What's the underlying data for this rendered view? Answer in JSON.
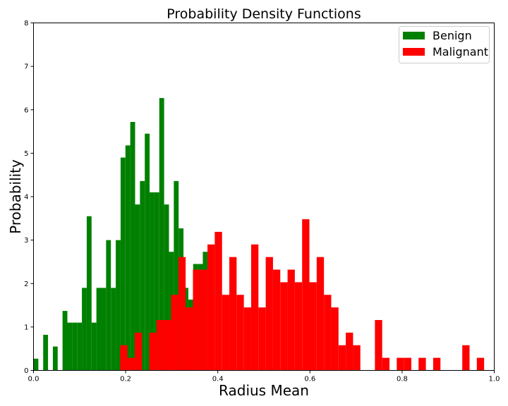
{
  "chart_data": {
    "type": "bar",
    "title": "Probability Density Functions",
    "xlabel": "Radius Mean",
    "ylabel": "Probability",
    "xlim": [
      0.0,
      1.0
    ],
    "ylim": [
      0,
      8
    ],
    "x_ticks": [
      "0.0",
      "0.2",
      "0.4",
      "0.6",
      "0.8",
      "1.0"
    ],
    "x_tick_values": [
      0.0,
      0.2,
      0.4,
      0.6,
      0.8,
      1.0
    ],
    "y_ticks": [
      "0",
      "1",
      "2",
      "3",
      "4",
      "5",
      "6",
      "7",
      "8"
    ],
    "y_tick_values": [
      0,
      1,
      2,
      3,
      4,
      5,
      6,
      7,
      8
    ],
    "grid": false,
    "legend_position": "top-right",
    "series": [
      {
        "name": "Benign",
        "color": "#008000",
        "bin_edges": [
          0.0,
          0.0105,
          0.021,
          0.0315,
          0.042,
          0.0525,
          0.063,
          0.0735,
          0.084,
          0.0945,
          0.105,
          0.1155,
          0.126,
          0.1365,
          0.147,
          0.1575,
          0.168,
          0.1785,
          0.189,
          0.1995,
          0.21,
          0.2205,
          0.231,
          0.2415,
          0.252,
          0.2625,
          0.273,
          0.2835,
          0.294,
          0.3045,
          0.315,
          0.3255,
          0.336,
          0.3465,
          0.357,
          0.3675,
          0.378,
          0.3885,
          0.399
        ],
        "values": [
          0.27,
          0,
          0.82,
          0,
          0.55,
          0,
          1.37,
          1.1,
          1.1,
          1.1,
          1.9,
          3.55,
          1.1,
          1.9,
          1.9,
          3.0,
          1.9,
          3.0,
          4.9,
          5.18,
          5.72,
          3.82,
          4.36,
          5.45,
          4.1,
          4.1,
          6.27,
          3.82,
          2.73,
          4.36,
          3.27,
          1.9,
          1.63,
          2.45,
          2.45,
          2.73,
          0,
          0
        ]
      },
      {
        "name": "Malignant",
        "color": "#ff0000",
        "bin_edges": [
          0.188,
          0.2038,
          0.2196,
          0.2354,
          0.2512,
          0.267,
          0.2828,
          0.2986,
          0.3144,
          0.3302,
          0.346,
          0.3618,
          0.3776,
          0.3934,
          0.4092,
          0.425,
          0.4408,
          0.4566,
          0.4724,
          0.4882,
          0.504,
          0.5198,
          0.5356,
          0.5514,
          0.5672,
          0.583,
          0.5988,
          0.6146,
          0.6304,
          0.6462,
          0.662,
          0.6778,
          0.6936,
          0.7094,
          0.7252,
          0.741,
          0.7568,
          0.7726,
          0.7884,
          0.8042,
          0.82,
          0.8358,
          0.8516,
          0.8674,
          0.8832,
          0.899,
          0.9148,
          0.9306,
          0.9464,
          0.9622,
          0.978,
          0.9938,
          1.0096
        ],
        "values": [
          0.58,
          0.29,
          0.87,
          0,
          0.87,
          1.16,
          1.16,
          1.74,
          2.61,
          1.45,
          2.32,
          2.32,
          2.9,
          3.19,
          1.74,
          2.61,
          1.74,
          1.45,
          2.9,
          1.45,
          2.61,
          2.32,
          2.03,
          2.32,
          2.03,
          3.48,
          2.03,
          2.61,
          1.74,
          1.45,
          0.58,
          0.87,
          0.58,
          0,
          0,
          1.16,
          0.29,
          0,
          0.29,
          0.29,
          0,
          0.29,
          0,
          0.29,
          0,
          0,
          0,
          0.58,
          0,
          0.29,
          0,
          0
        ]
      }
    ]
  }
}
